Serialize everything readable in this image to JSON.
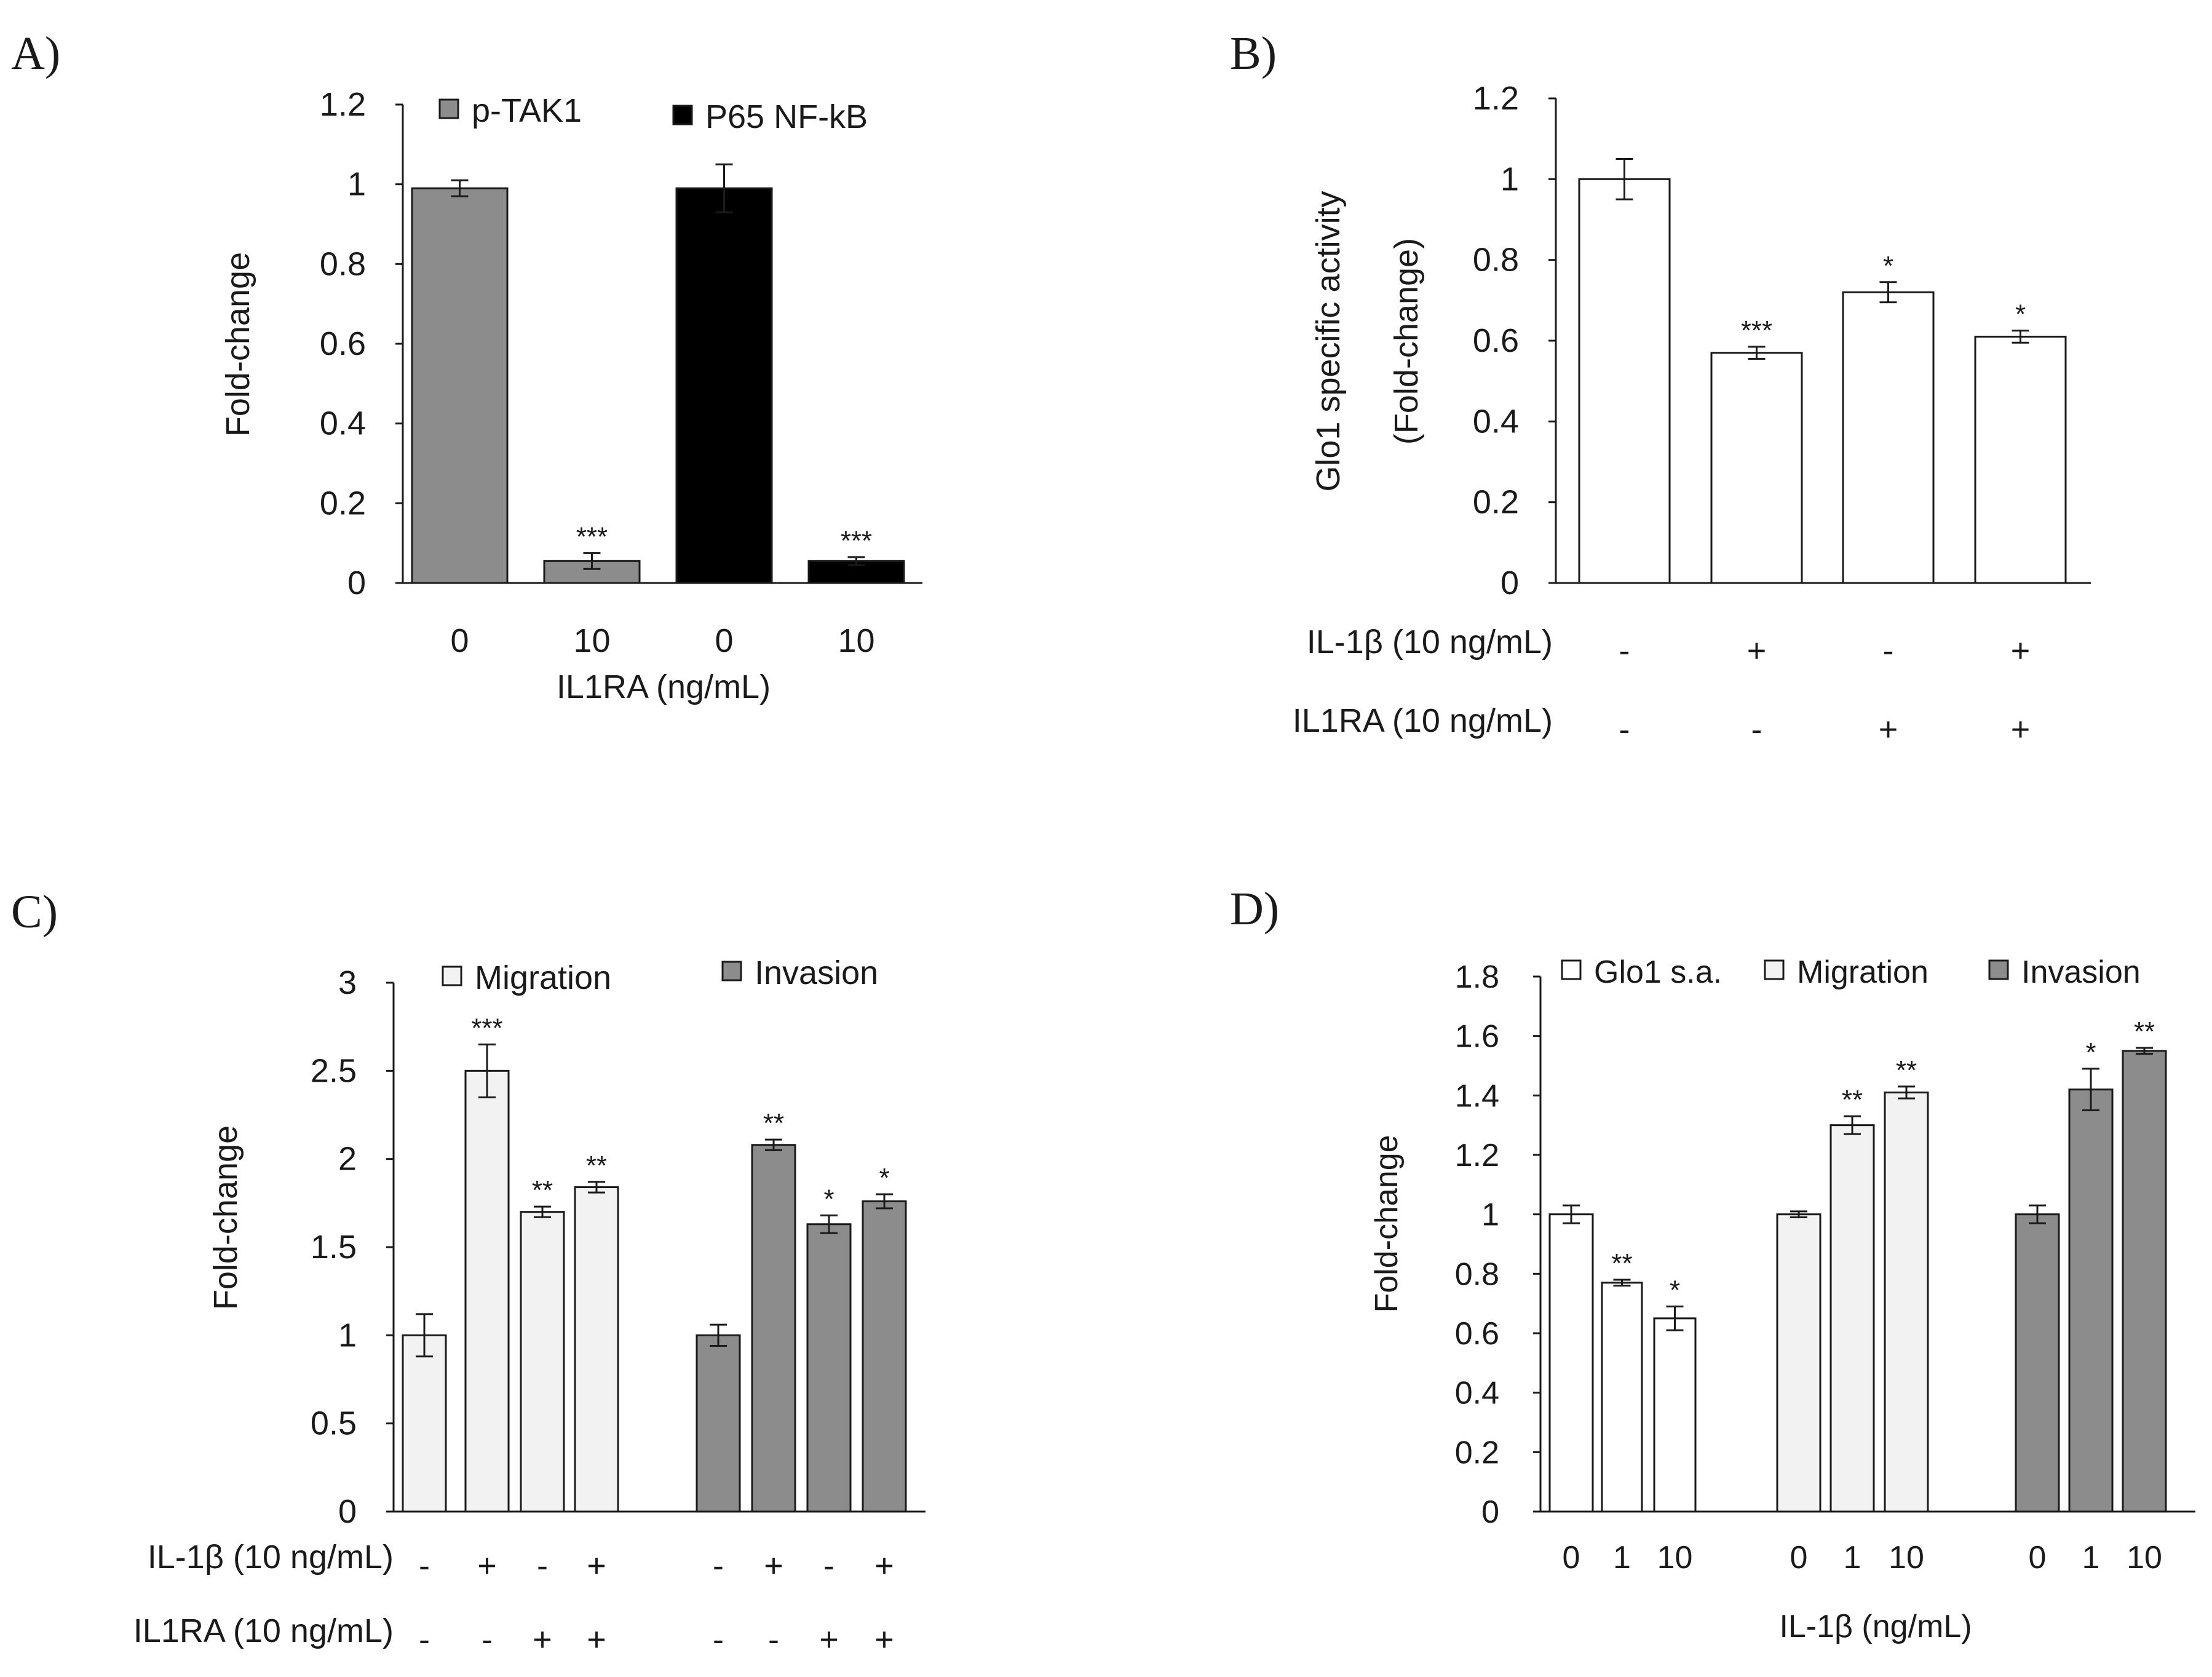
{
  "colors": {
    "white_bar": "#ffffff",
    "light_bar": "#f2f2f2",
    "grey_bar": "#8c8c8c",
    "black_bar": "#000000",
    "axis": "#1a1a1a"
  },
  "chart_data": [
    {
      "panel": "A)",
      "type": "bar",
      "ylabel": "Fold-change",
      "xlabel": "IL1RA (ng/mL)",
      "ylim": [
        0,
        1.2
      ],
      "yticks": [
        "0",
        "0.2",
        "0.4",
        "0.6",
        "0.8",
        "1",
        "1.2"
      ],
      "ytick_values": [
        0,
        0.2,
        0.4,
        0.6,
        0.8,
        1,
        1.2
      ],
      "legend": [
        {
          "name": "p-TAK1",
          "fill": "grey_bar"
        },
        {
          "name": "P65 NF-kB",
          "fill": "black_bar"
        }
      ],
      "bars": [
        {
          "series": "p-TAK1",
          "category": "0",
          "value": 0.99,
          "err": 0.02,
          "fill": "grey_bar",
          "sig": ""
        },
        {
          "series": "p-TAK1",
          "category": "10",
          "value": 0.055,
          "err": 0.02,
          "fill": "grey_bar",
          "sig": "***"
        },
        {
          "series": "P65 NF-kB",
          "category": "0",
          "value": 0.99,
          "err": 0.06,
          "fill": "black_bar",
          "sig": ""
        },
        {
          "series": "P65 NF-kB",
          "category": "10",
          "value": 0.055,
          "err": 0.01,
          "fill": "black_bar",
          "sig": "***"
        }
      ],
      "xrows": [
        {
          "label": "",
          "values": [
            "0",
            "10",
            "0",
            "10"
          ]
        }
      ]
    },
    {
      "panel": "B)",
      "type": "bar",
      "ylabel": "Glo1 specific activity",
      "ylabel2": "(Fold-change)",
      "ylim": [
        0,
        1.2
      ],
      "yticks": [
        "0",
        "0.2",
        "0.4",
        "0.6",
        "0.8",
        "1",
        "1.2"
      ],
      "ytick_values": [
        0,
        0.2,
        0.4,
        0.6,
        0.8,
        1,
        1.2
      ],
      "legend": [],
      "bars": [
        {
          "series": "Glo1",
          "category": "1",
          "value": 1.0,
          "err": 0.05,
          "fill": "white_bar",
          "sig": ""
        },
        {
          "series": "Glo1",
          "category": "2",
          "value": 0.57,
          "err": 0.015,
          "fill": "white_bar",
          "sig": "***"
        },
        {
          "series": "Glo1",
          "category": "3",
          "value": 0.72,
          "err": 0.025,
          "fill": "white_bar",
          "sig": "*"
        },
        {
          "series": "Glo1",
          "category": "4",
          "value": 0.61,
          "err": 0.015,
          "fill": "white_bar",
          "sig": "*"
        }
      ],
      "xrows": [
        {
          "label": "IL-1β (10 ng/mL)",
          "values": [
            "-",
            "+",
            "-",
            "+"
          ]
        },
        {
          "label": "IL1RA (10 ng/mL)",
          "values": [
            "-",
            "-",
            "+",
            "+"
          ]
        }
      ]
    },
    {
      "panel": "C)",
      "type": "bar",
      "ylabel": "Fold-change",
      "ylim": [
        0,
        3
      ],
      "yticks": [
        "0",
        "0.5",
        "1",
        "1.5",
        "2",
        "2.5",
        "3"
      ],
      "ytick_values": [
        0,
        0.5,
        1,
        1.5,
        2,
        2.5,
        3
      ],
      "legend": [
        {
          "name": "Migration",
          "fill": "light_bar"
        },
        {
          "name": "Invasion",
          "fill": "grey_bar"
        }
      ],
      "bars": [
        {
          "series": "Migration",
          "category": "1",
          "value": 1.0,
          "err": 0.12,
          "fill": "light_bar",
          "sig": ""
        },
        {
          "series": "Migration",
          "category": "2",
          "value": 2.5,
          "err": 0.15,
          "fill": "light_bar",
          "sig": "***"
        },
        {
          "series": "Migration",
          "category": "3",
          "value": 1.7,
          "err": 0.03,
          "fill": "light_bar",
          "sig": "**"
        },
        {
          "series": "Migration",
          "category": "4",
          "value": 1.84,
          "err": 0.03,
          "fill": "light_bar",
          "sig": "**"
        },
        {
          "series": "Invasion",
          "category": "1",
          "value": 1.0,
          "err": 0.06,
          "fill": "grey_bar",
          "sig": ""
        },
        {
          "series": "Invasion",
          "category": "2",
          "value": 2.08,
          "err": 0.03,
          "fill": "grey_bar",
          "sig": "**"
        },
        {
          "series": "Invasion",
          "category": "3",
          "value": 1.63,
          "err": 0.05,
          "fill": "grey_bar",
          "sig": "*"
        },
        {
          "series": "Invasion",
          "category": "4",
          "value": 1.76,
          "err": 0.04,
          "fill": "grey_bar",
          "sig": "*"
        }
      ],
      "xrows": [
        {
          "label": "IL-1β (10 ng/mL)",
          "values": [
            "-",
            "+",
            "-",
            "+",
            "-",
            "+",
            "-",
            "+"
          ]
        },
        {
          "label": "IL1RA (10 ng/mL)",
          "values": [
            "-",
            "-",
            "+",
            "+",
            "-",
            "-",
            "+",
            "+"
          ]
        }
      ]
    },
    {
      "panel": "D)",
      "type": "bar",
      "ylabel": "Fold-change",
      "xlabel": "IL-1β (ng/mL)",
      "ylim": [
        0,
        1.8
      ],
      "yticks": [
        "0",
        "0.2",
        "0.4",
        "0.6",
        "0.8",
        "1",
        "1.2",
        "1.4",
        "1.6",
        "1.8"
      ],
      "ytick_values": [
        0,
        0.2,
        0.4,
        0.6,
        0.8,
        1,
        1.2,
        1.4,
        1.6,
        1.8
      ],
      "legend": [
        {
          "name": "Glo1 s.a.",
          "fill": "white_bar"
        },
        {
          "name": "Migration",
          "fill": "light_bar"
        },
        {
          "name": "Invasion",
          "fill": "grey_bar"
        }
      ],
      "bars": [
        {
          "series": "Glo1 s.a.",
          "category": "0",
          "value": 1.0,
          "err": 0.03,
          "fill": "white_bar",
          "sig": ""
        },
        {
          "series": "Glo1 s.a.",
          "category": "1",
          "value": 0.77,
          "err": 0.01,
          "fill": "white_bar",
          "sig": "**"
        },
        {
          "series": "Glo1 s.a.",
          "category": "10",
          "value": 0.65,
          "err": 0.04,
          "fill": "white_bar",
          "sig": "*"
        },
        {
          "series": "Migration",
          "category": "0",
          "value": 1.0,
          "err": 0.01,
          "fill": "light_bar",
          "sig": ""
        },
        {
          "series": "Migration",
          "category": "1",
          "value": 1.3,
          "err": 0.03,
          "fill": "light_bar",
          "sig": "**"
        },
        {
          "series": "Migration",
          "category": "10",
          "value": 1.41,
          "err": 0.02,
          "fill": "light_bar",
          "sig": "**"
        },
        {
          "series": "Invasion",
          "category": "0",
          "value": 1.0,
          "err": 0.03,
          "fill": "grey_bar",
          "sig": ""
        },
        {
          "series": "Invasion",
          "category": "1",
          "value": 1.42,
          "err": 0.07,
          "fill": "grey_bar",
          "sig": "*"
        },
        {
          "series": "Invasion",
          "category": "10",
          "value": 1.55,
          "err": 0.01,
          "fill": "grey_bar",
          "sig": "**"
        }
      ],
      "xrows": [
        {
          "label": "",
          "values": [
            "0",
            "1",
            "10",
            "0",
            "1",
            "10",
            "0",
            "1",
            "10"
          ]
        }
      ]
    }
  ]
}
